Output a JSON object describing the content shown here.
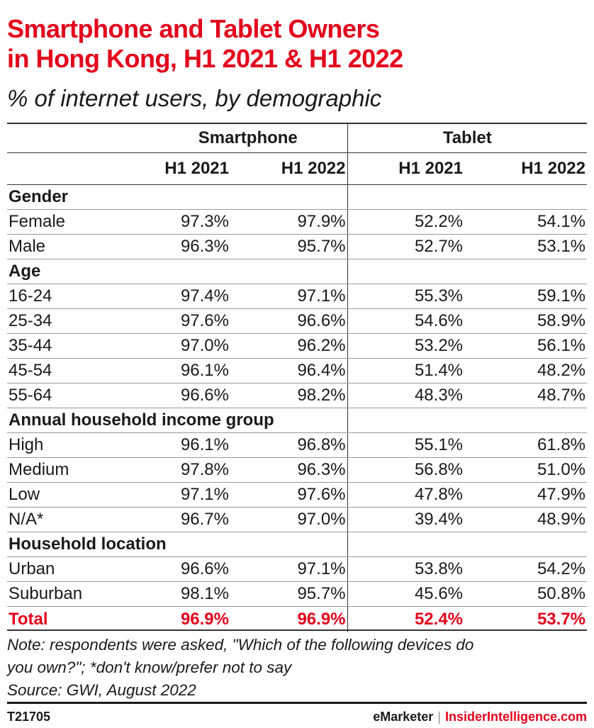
{
  "title_line1": "Smartphone and Tablet Owners",
  "title_line2": "in Hong Kong, H1 2021 & H1 2022",
  "subtitle": "% of internet users, by demographic",
  "chart_data": {
    "type": "table",
    "column_groups": [
      "Smartphone",
      "Tablet"
    ],
    "columns": [
      "H1 2021",
      "H1 2022",
      "H1 2021",
      "H1 2022"
    ],
    "sections": [
      {
        "name": "Gender",
        "rows": [
          {
            "label": "Female",
            "values": [
              "97.3%",
              "97.9%",
              "52.2%",
              "54.1%"
            ]
          },
          {
            "label": "Male",
            "values": [
              "96.3%",
              "95.7%",
              "52.7%",
              "53.1%"
            ]
          }
        ]
      },
      {
        "name": "Age",
        "rows": [
          {
            "label": "16-24",
            "values": [
              "97.4%",
              "97.1%",
              "55.3%",
              "59.1%"
            ]
          },
          {
            "label": "25-34",
            "values": [
              "97.6%",
              "96.6%",
              "54.6%",
              "58.9%"
            ]
          },
          {
            "label": "35-44",
            "values": [
              "97.0%",
              "96.2%",
              "53.2%",
              "56.1%"
            ]
          },
          {
            "label": "45-54",
            "values": [
              "96.1%",
              "96.4%",
              "51.4%",
              "48.2%"
            ]
          },
          {
            "label": "55-64",
            "values": [
              "96.6%",
              "98.2%",
              "48.3%",
              "48.7%"
            ]
          }
        ]
      },
      {
        "name": "Annual household income group",
        "rows": [
          {
            "label": "High",
            "values": [
              "96.1%",
              "96.8%",
              "55.1%",
              "61.8%"
            ]
          },
          {
            "label": "Medium",
            "values": [
              "97.8%",
              "96.3%",
              "56.8%",
              "51.0%"
            ]
          },
          {
            "label": "Low",
            "values": [
              "97.1%",
              "97.6%",
              "47.8%",
              "47.9%"
            ]
          },
          {
            "label": "N/A*",
            "values": [
              "96.7%",
              "97.0%",
              "39.4%",
              "48.9%"
            ]
          }
        ]
      },
      {
        "name": "Household location",
        "rows": [
          {
            "label": "Urban",
            "values": [
              "96.6%",
              "97.1%",
              "53.8%",
              "54.2%"
            ]
          },
          {
            "label": "Suburban",
            "values": [
              "98.1%",
              "95.7%",
              "45.6%",
              "50.8%"
            ]
          }
        ]
      }
    ],
    "total": {
      "label": "Total",
      "values": [
        "96.9%",
        "96.9%",
        "52.4%",
        "53.7%"
      ]
    }
  },
  "note_line1": "Note: respondents were asked, \"Which of the following devices do",
  "note_line2": "you own?\"; *don't know/prefer not to say",
  "source": "Source: GWI, August 2022",
  "footer": {
    "code": "T21705",
    "brand1": "eMarketer",
    "divider": "|",
    "brand2": "InsiderIntelligence.com"
  },
  "colors": {
    "accent": "#e3001b",
    "text": "#1a1a1a"
  }
}
